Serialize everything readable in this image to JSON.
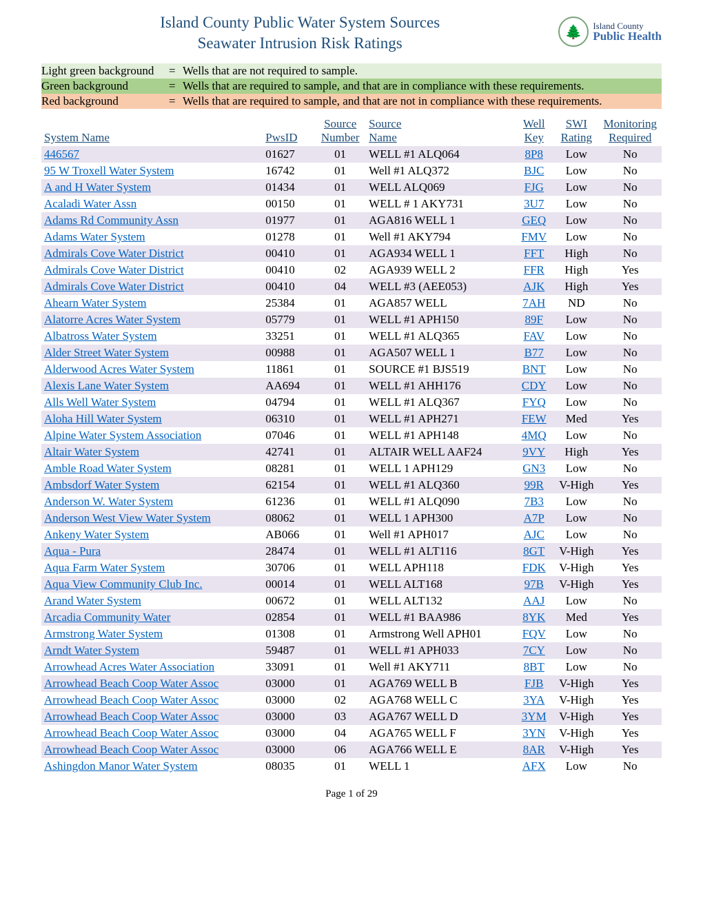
{
  "title": {
    "line1": "Island County Public Water System Sources",
    "line2": "Seawater Intrusion Risk Ratings"
  },
  "logo": {
    "top": "Island County",
    "bottom": "Public Health",
    "glyph": "🌲"
  },
  "legend": [
    {
      "label": "Light green background",
      "eq": "=",
      "desc": "Wells that are not required to sample.",
      "bg": "#e2efda"
    },
    {
      "label": "Green background",
      "eq": "=",
      "desc": "Wells that are required to sample, and that are in compliance with these requirements.",
      "bg": "#a9d08e"
    },
    {
      "label": "Red background",
      "eq": "=",
      "desc": "Wells that are required to sample, and that are not in compliance with these requirements.",
      "bg": "#f8cbad"
    }
  ],
  "columns": {
    "system_name": "System Name",
    "pwsid": "PwsID",
    "source_number_top": "Source",
    "source_number_bot": "Number",
    "source_name_top": "Source",
    "source_name_bot": "Name",
    "well_key_top": "Well",
    "well_key_bot": "Key",
    "swi_top": "SWI",
    "swi_bot": "Rating",
    "mon_top": "Monitoring",
    "mon_bot": "Required"
  },
  "row_colors": {
    "none": "transparent",
    "alt": "#e8e3ef",
    "red": "#f2a8a0"
  },
  "rows": [
    {
      "sys": "446567",
      "pws": "01627",
      "sn": "01",
      "src": "WELL #1 ALQ064",
      "wk": "8P8",
      "swi": "Low",
      "mon": "No",
      "row": "alt"
    },
    {
      "sys": "95 W Troxell Water System",
      "pws": "16742",
      "sn": "01",
      "src": "Well #1 ALQ372",
      "wk": "BJC",
      "swi": "Low",
      "mon": "No",
      "row": "none"
    },
    {
      "sys": "A and H Water System",
      "pws": "01434",
      "sn": "01",
      "src": "WELL ALQ069",
      "wk": "FJG",
      "swi": "Low",
      "mon": "No",
      "row": "alt"
    },
    {
      "sys": "Acaladi Water Assn",
      "pws": "00150",
      "sn": "01",
      "src": "WELL # 1 AKY731",
      "wk": "3U7",
      "swi": "Low",
      "mon": "No",
      "row": "none"
    },
    {
      "sys": "Adams Rd Community Assn",
      "pws": "01977",
      "sn": "01",
      "src": "AGA816 WELL 1",
      "wk": "GEQ",
      "swi": "Low",
      "mon": "No",
      "row": "alt"
    },
    {
      "sys": "Adams Water System",
      "pws": "01278",
      "sn": "01",
      "src": "Well #1 AKY794",
      "wk": "FMV",
      "swi": "Low",
      "mon": "No",
      "row": "none"
    },
    {
      "sys": "Admirals Cove Water District",
      "pws": "00410",
      "sn": "01",
      "src": "AGA934 WELL 1",
      "wk": "FFT",
      "swi": "High",
      "mon": "No",
      "row": "alt"
    },
    {
      "sys": "Admirals Cove Water District",
      "pws": "00410",
      "sn": "02",
      "src": "AGA939 WELL 2",
      "wk": "FFR",
      "swi": "High",
      "mon": "Yes",
      "row": "none"
    },
    {
      "sys": "Admirals Cove Water District",
      "pws": "00410",
      "sn": "04",
      "src": "WELL #3 (AEE053)",
      "wk": "AJK",
      "swi": "High",
      "mon": "Yes",
      "row": "alt"
    },
    {
      "sys": "Ahearn Water System",
      "pws": "25384",
      "sn": "01",
      "src": "AGA857 WELL",
      "wk": "7AH",
      "swi": "ND",
      "mon": "No",
      "row": "none"
    },
    {
      "sys": "Alatorre Acres Water System",
      "pws": "05779",
      "sn": "01",
      "src": "WELL #1 APH150",
      "wk": "89F",
      "swi": "Low",
      "mon": "No",
      "row": "alt"
    },
    {
      "sys": "Albatross Water System",
      "pws": "33251",
      "sn": "01",
      "src": "WELL #1 ALQ365",
      "wk": "FAV",
      "swi": "Low",
      "mon": "No",
      "row": "none"
    },
    {
      "sys": "Alder Street Water System",
      "pws": "00988",
      "sn": "01",
      "src": "AGA507 WELL 1",
      "wk": "B77",
      "swi": "Low",
      "mon": "No",
      "row": "alt"
    },
    {
      "sys": "Alderwood Acres Water System",
      "pws": "11861",
      "sn": "01",
      "src": "SOURCE #1 BJS519",
      "wk": "BNT",
      "swi": "Low",
      "mon": "No",
      "row": "none"
    },
    {
      "sys": "Alexis Lane Water System",
      "pws": "AA694",
      "sn": "01",
      "src": "WELL #1 AHH176",
      "wk": "CDY",
      "swi": "Low",
      "mon": "No",
      "row": "alt"
    },
    {
      "sys": "Alls Well Water System",
      "pws": "04794",
      "sn": "01",
      "src": "WELL #1 ALQ367",
      "wk": "FYQ",
      "swi": "Low",
      "mon": "No",
      "row": "none"
    },
    {
      "sys": "Aloha Hill Water System",
      "pws": "06310",
      "sn": "01",
      "src": "WELL #1 APH271",
      "wk": "FEW",
      "swi": "Med",
      "mon": "Yes",
      "row": "alt"
    },
    {
      "sys": "Alpine Water System Association",
      "pws": "07046",
      "sn": "01",
      "src": "WELL #1  APH148",
      "wk": "4MQ",
      "swi": "Low",
      "mon": "No",
      "row": "none"
    },
    {
      "sys": "Altair Water System",
      "pws": "42741",
      "sn": "01",
      "src": "ALTAIR WELL AAF24",
      "wk": "9VY",
      "swi": "High",
      "mon": "Yes",
      "row": "alt"
    },
    {
      "sys": "Amble Road Water System",
      "pws": "08281",
      "sn": "01",
      "src": "WELL 1  APH129",
      "wk": "GN3",
      "swi": "Low",
      "mon": "No",
      "row": "none"
    },
    {
      "sys": "Ambsdorf Water System",
      "pws": "62154",
      "sn": "01",
      "src": "WELL #1 ALQ360",
      "wk": "99R",
      "swi": "V-High",
      "mon": "Yes",
      "row": "alt"
    },
    {
      "sys": "Anderson W. Water System",
      "pws": "61236",
      "sn": "01",
      "src": "WELL #1 ALQ090",
      "wk": "7B3",
      "swi": "Low",
      "mon": "No",
      "row": "none"
    },
    {
      "sys": "Anderson West View Water System",
      "pws": "08062",
      "sn": "01",
      "src": "WELL 1 APH300",
      "wk": "A7P",
      "swi": "Low",
      "mon": "No",
      "row": "alt"
    },
    {
      "sys": "Ankeny Water System",
      "pws": "AB066",
      "sn": "01",
      "src": "Well #1 APH017",
      "wk": "AJC",
      "swi": "Low",
      "mon": "No",
      "row": "none"
    },
    {
      "sys": "Aqua - Pura",
      "pws": "28474",
      "sn": "01",
      "src": "WELL #1  ALT116",
      "wk": "8GT",
      "swi": "V-High",
      "mon": "Yes",
      "row": "alt"
    },
    {
      "sys": "Aqua Farm Water System",
      "pws": "30706",
      "sn": "01",
      "src": "WELL  APH118",
      "wk": "FDK",
      "swi": "V-High",
      "mon": "Yes",
      "row": "none"
    },
    {
      "sys": "Aqua View Community Club Inc.",
      "pws": "00014",
      "sn": "01",
      "src": "WELL ALT168",
      "wk": "97B",
      "swi": "V-High",
      "mon": "Yes",
      "row": "alt"
    },
    {
      "sys": "Arand Water System",
      "pws": "00672",
      "sn": "01",
      "src": "WELL ALT132",
      "wk": "AAJ",
      "swi": "Low",
      "mon": "No",
      "row": "none"
    },
    {
      "sys": "Arcadia Community Water",
      "pws": "02854",
      "sn": "01",
      "src": "WELL #1 BAA986",
      "wk": "8YK",
      "swi": "Med",
      "mon": "Yes",
      "row": "alt"
    },
    {
      "sys": "Armstrong Water System",
      "pws": "01308",
      "sn": "01",
      "src": "Armstrong Well APH01",
      "wk": "FQV",
      "swi": "Low",
      "mon": "No",
      "row": "none"
    },
    {
      "sys": "Arndt Water System",
      "pws": "59487",
      "sn": "01",
      "src": "WELL #1 APH033",
      "wk": "7CY",
      "swi": "Low",
      "mon": "No",
      "row": "alt"
    },
    {
      "sys": "Arrowhead Acres Water Association",
      "pws": "33091",
      "sn": "01",
      "src": "Well #1 AKY711",
      "wk": "8BT",
      "swi": "Low",
      "mon": "No",
      "row": "none"
    },
    {
      "sys": "Arrowhead Beach Coop Water Assoc",
      "pws": "03000",
      "sn": "01",
      "src": "AGA769 WELL B",
      "wk": "FJB",
      "swi": "V-High",
      "mon": "Yes",
      "row": "alt"
    },
    {
      "sys": "Arrowhead Beach Coop Water Assoc",
      "pws": "03000",
      "sn": "02",
      "src": "AGA768 WELL C",
      "wk": "3YA",
      "swi": "V-High",
      "mon": "Yes",
      "row": "none"
    },
    {
      "sys": "Arrowhead Beach Coop Water Assoc",
      "pws": "03000",
      "sn": "03",
      "src": "AGA767 WELL D",
      "wk": "3YM",
      "swi": "V-High",
      "mon": "Yes",
      "row": "alt"
    },
    {
      "sys": "Arrowhead Beach Coop Water Assoc",
      "pws": "03000",
      "sn": "04",
      "src": "AGA765 WELL F",
      "wk": "3YN",
      "swi": "V-High",
      "mon": "Yes",
      "row": "none"
    },
    {
      "sys": "Arrowhead Beach Coop Water Assoc",
      "pws": "03000",
      "sn": "06",
      "src": "AGA766 WELL E",
      "wk": "8AR",
      "swi": "V-High",
      "mon": "Yes",
      "row": "alt"
    },
    {
      "sys": "Ashingdon Manor Water System",
      "pws": "08035",
      "sn": "01",
      "src": "WELL 1",
      "wk": "AFX",
      "swi": "Low",
      "mon": "No",
      "row": "none"
    }
  ],
  "footer": "Page 1 of 29"
}
